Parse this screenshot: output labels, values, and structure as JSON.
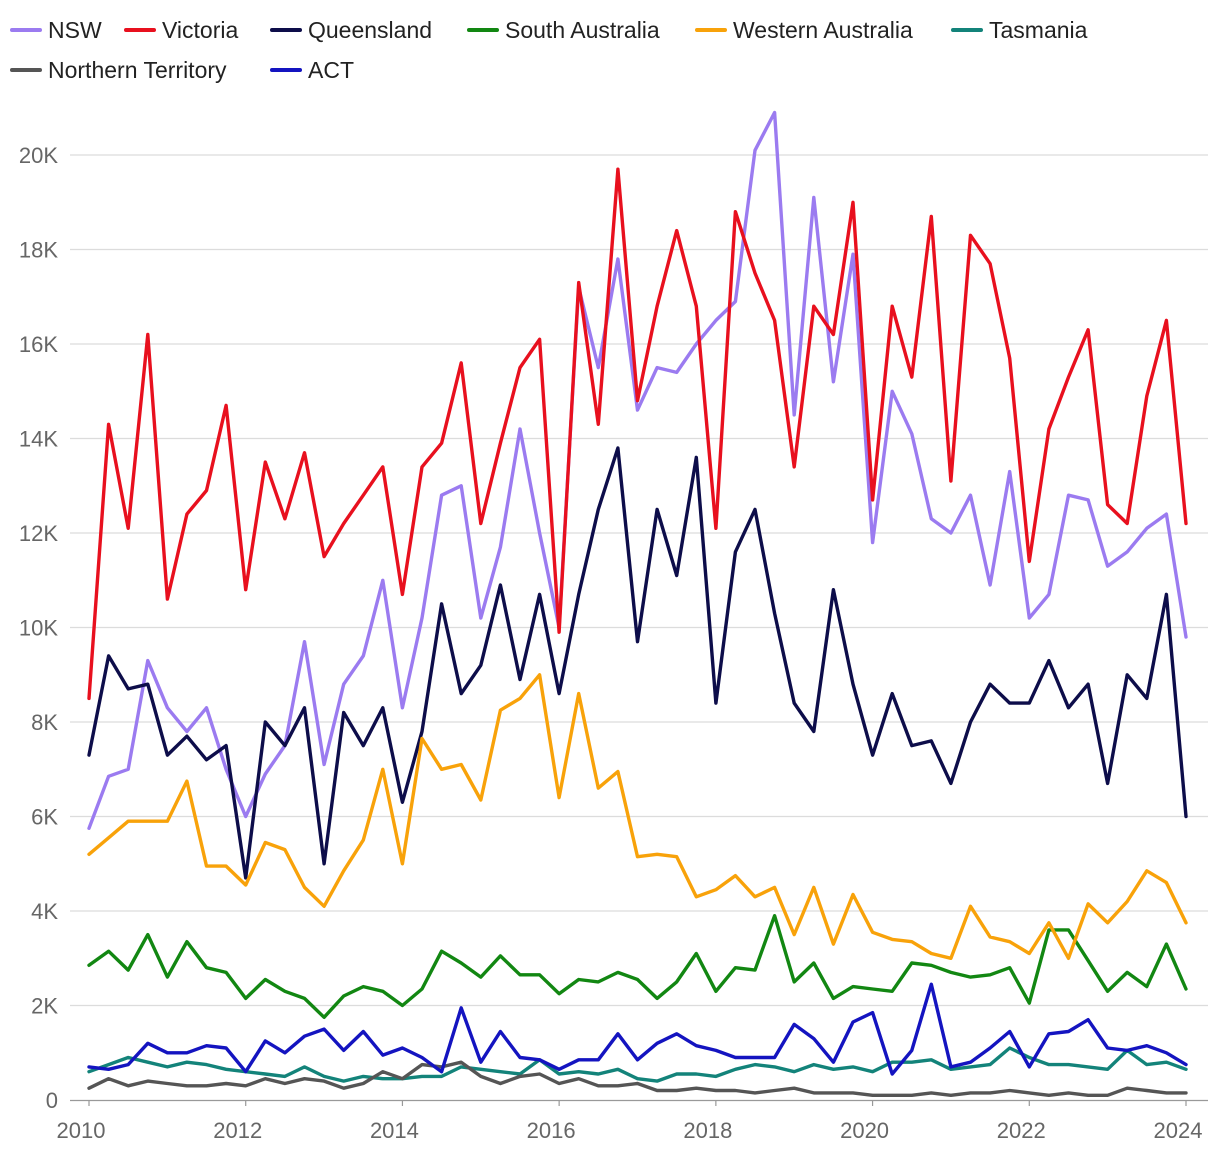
{
  "chart_data": {
    "type": "line",
    "title": "",
    "xlabel": "",
    "ylabel": "",
    "xlim": [
      2010,
      2024.25
    ],
    "ylim": [
      0,
      21500
    ],
    "x_ticks": [
      2010,
      2012,
      2014,
      2016,
      2018,
      2020,
      2022,
      2024
    ],
    "x_tick_labels": [
      "2010",
      "2012",
      "2014",
      "2016",
      "2018",
      "2020",
      "2022",
      "2024"
    ],
    "y_ticks": [
      0,
      2000,
      4000,
      6000,
      8000,
      10000,
      12000,
      14000,
      16000,
      18000,
      20000
    ],
    "y_tick_labels": [
      "0",
      "2K",
      "4K",
      "6K",
      "8K",
      "10K",
      "12K",
      "14K",
      "16K",
      "18K",
      "20K"
    ],
    "grid": true,
    "legend_position": "top",
    "x": [
      2010.0,
      2010.25,
      2010.5,
      2010.75,
      2011.0,
      2011.25,
      2011.5,
      2011.75,
      2012.0,
      2012.25,
      2012.5,
      2012.75,
      2013.0,
      2013.25,
      2013.5,
      2013.75,
      2014.0,
      2014.25,
      2014.5,
      2014.75,
      2015.0,
      2015.25,
      2015.5,
      2015.75,
      2016.0,
      2016.25,
      2016.5,
      2016.75,
      2017.0,
      2017.25,
      2017.5,
      2017.75,
      2018.0,
      2018.25,
      2018.5,
      2018.75,
      2019.0,
      2019.25,
      2019.5,
      2019.75,
      2020.0,
      2020.25,
      2020.5,
      2020.75,
      2021.0,
      2021.25,
      2021.5,
      2021.75,
      2022.0,
      2022.25,
      2022.5,
      2022.75,
      2023.0,
      2023.25,
      2023.5,
      2023.75,
      2024.0
    ],
    "series": [
      {
        "name": "NSW",
        "color": "#9b7bf0",
        "values": [
          5750,
          6850,
          7000,
          9300,
          8300,
          7800,
          8300,
          7000,
          6000,
          6900,
          7500,
          9700,
          7100,
          8800,
          9400,
          11000,
          8300,
          10200,
          12800,
          13000,
          10200,
          11700,
          14200,
          12000,
          10000,
          17200,
          15500,
          17800,
          14600,
          15500,
          15400,
          16000,
          16500,
          16900,
          20100,
          20900,
          14500,
          19100,
          15200,
          17900,
          11800,
          15000,
          14100,
          12300,
          12000,
          12800,
          10900,
          13300,
          10200,
          10700,
          12800,
          12700,
          11300,
          11600,
          12100,
          12400,
          9800
        ]
      },
      {
        "name": "Victoria",
        "color": "#e8101e",
        "values": [
          8500,
          14300,
          12100,
          16200,
          10600,
          12400,
          12900,
          14700,
          10800,
          13500,
          12300,
          13700,
          11500,
          12200,
          12800,
          13400,
          10700,
          13400,
          13900,
          15600,
          12200,
          13900,
          15500,
          16100,
          9900,
          17300,
          14300,
          19700,
          14800,
          16800,
          18400,
          16800,
          12100,
          18800,
          17500,
          16500,
          13400,
          16800,
          16200,
          19000,
          12700,
          16800,
          15300,
          18700,
          13100,
          18300,
          17700,
          15700,
          11400,
          14200,
          15300,
          16300,
          12600,
          12200,
          14900,
          16500,
          12200
        ]
      },
      {
        "name": "Queensland",
        "color": "#0d0d4a",
        "values": [
          7300,
          9400,
          8700,
          8800,
          7300,
          7700,
          7200,
          7500,
          4700,
          8000,
          7500,
          8300,
          5000,
          8200,
          7500,
          8300,
          6300,
          7800,
          10500,
          8600,
          9200,
          10900,
          8900,
          10700,
          8600,
          10700,
          12500,
          13800,
          9700,
          12500,
          11100,
          13600,
          8400,
          11600,
          12500,
          10300,
          8400,
          7800,
          10800,
          8800,
          7300,
          8600,
          7500,
          7600,
          6700,
          8000,
          8800,
          8400,
          8400,
          9300,
          8300,
          8800,
          6700,
          9000,
          8500,
          10700,
          6000
        ]
      },
      {
        "name": "South Australia",
        "color": "#128712",
        "values": [
          2850,
          3150,
          2750,
          3500,
          2600,
          3350,
          2800,
          2700,
          2150,
          2550,
          2300,
          2150,
          1750,
          2200,
          2400,
          2300,
          2000,
          2350,
          3150,
          2900,
          2600,
          3050,
          2650,
          2650,
          2250,
          2550,
          2500,
          2700,
          2550,
          2150,
          2500,
          3100,
          2300,
          2800,
          2750,
          3900,
          2500,
          2900,
          2150,
          2400,
          2350,
          2300,
          2900,
          2850,
          2700,
          2600,
          2650,
          2800,
          2050,
          3600,
          3600,
          2950,
          2300,
          2700,
          2400,
          3300,
          2350
        ]
      },
      {
        "name": "Western Australia",
        "color": "#f8a20a",
        "values": [
          5200,
          5550,
          5900,
          5900,
          5900,
          6750,
          4950,
          4950,
          4550,
          5450,
          5300,
          4500,
          4100,
          4850,
          5500,
          7000,
          5000,
          7650,
          7000,
          7100,
          6350,
          8250,
          8500,
          9000,
          6400,
          8600,
          6600,
          6950,
          5150,
          5200,
          5150,
          4300,
          4450,
          4750,
          4300,
          4500,
          3500,
          4500,
          3300,
          4350,
          3550,
          3400,
          3350,
          3100,
          3000,
          4100,
          3450,
          3350,
          3100,
          3750,
          3000,
          4150,
          3750,
          4200,
          4850,
          4600,
          3750
        ]
      },
      {
        "name": "Tasmania",
        "color": "#13837a",
        "values": [
          600,
          750,
          900,
          800,
          700,
          800,
          750,
          650,
          600,
          550,
          500,
          700,
          500,
          400,
          500,
          450,
          450,
          500,
          500,
          700,
          650,
          600,
          550,
          850,
          550,
          600,
          550,
          650,
          450,
          400,
          550,
          550,
          500,
          650,
          750,
          700,
          600,
          750,
          650,
          700,
          600,
          800,
          800,
          850,
          650,
          700,
          750,
          1100,
          900,
          750,
          750,
          700,
          650,
          1050,
          750,
          800,
          650
        ]
      },
      {
        "name": "Northern Territory",
        "color": "#555555",
        "values": [
          250,
          450,
          300,
          400,
          350,
          300,
          300,
          350,
          300,
          450,
          350,
          450,
          400,
          250,
          350,
          600,
          450,
          750,
          700,
          800,
          500,
          350,
          500,
          550,
          350,
          450,
          300,
          300,
          350,
          200,
          200,
          250,
          200,
          200,
          150,
          200,
          250,
          150,
          150,
          150,
          100,
          100,
          100,
          150,
          100,
          150,
          150,
          200,
          150,
          100,
          150,
          100,
          100,
          250,
          200,
          150,
          150
        ]
      },
      {
        "name": "ACT",
        "color": "#1414c0",
        "values": [
          700,
          650,
          750,
          1200,
          1000,
          1000,
          1150,
          1100,
          600,
          1250,
          1000,
          1350,
          1500,
          1050,
          1450,
          950,
          1100,
          900,
          600,
          1950,
          800,
          1450,
          900,
          850,
          650,
          850,
          850,
          1400,
          850,
          1200,
          1400,
          1150,
          1050,
          900,
          900,
          900,
          1600,
          1300,
          800,
          1650,
          1850,
          550,
          1050,
          2450,
          700,
          800,
          1100,
          1450,
          700,
          1400,
          1450,
          1700,
          1100,
          1050,
          1150,
          1000,
          750
        ]
      }
    ]
  }
}
